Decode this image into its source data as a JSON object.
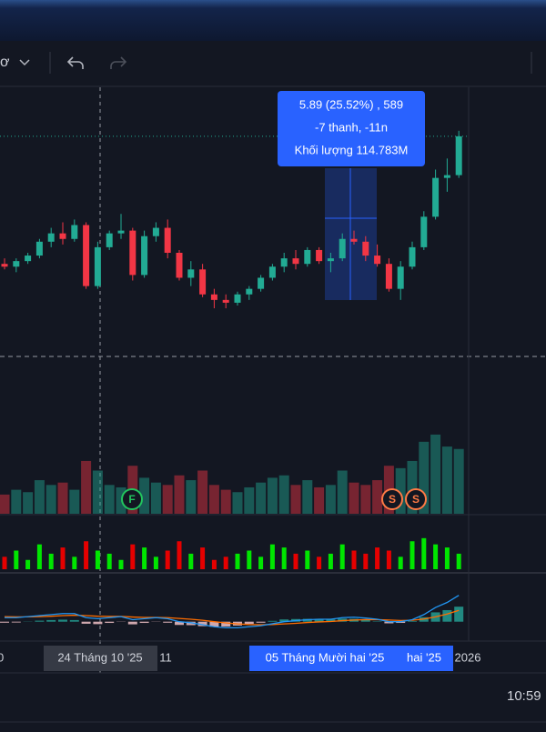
{
  "toolbar": {
    "menu_fragment": "ơ"
  },
  "chart_data": {
    "type": "candlestick",
    "open": [
      24.4,
      24.3,
      24.5,
      24.7,
      25.2,
      25.5,
      25.3,
      25.8,
      23.6,
      25.0,
      25.5,
      25.6,
      24.0,
      25.4,
      25.7,
      24.8,
      23.9,
      24.2,
      23.3,
      23.1,
      23.0,
      23.3,
      23.5,
      23.9,
      24.3,
      24.6,
      24.4,
      24.9,
      24.5,
      24.6,
      25.3,
      25.2,
      24.7,
      24.4,
      23.5,
      24.3,
      25.0,
      26.1,
      27.5,
      27.6
    ],
    "high": [
      24.6,
      24.6,
      24.8,
      25.3,
      25.7,
      25.9,
      26.0,
      25.9,
      25.2,
      25.6,
      26.2,
      25.7,
      25.6,
      25.9,
      26.0,
      24.9,
      24.5,
      24.4,
      23.5,
      23.3,
      23.4,
      23.6,
      24.0,
      24.4,
      24.8,
      24.9,
      25.0,
      25.0,
      24.8,
      25.5,
      25.6,
      25.4,
      25.1,
      24.6,
      24.5,
      25.2,
      26.3,
      27.8,
      28.2,
      29.2
    ],
    "low": [
      24.2,
      24.1,
      24.4,
      24.6,
      25.0,
      25.1,
      25.2,
      23.5,
      23.5,
      24.9,
      25.3,
      23.8,
      23.9,
      25.2,
      24.6,
      23.8,
      23.6,
      23.2,
      22.8,
      22.8,
      22.9,
      23.1,
      23.4,
      23.8,
      24.1,
      24.2,
      24.3,
      24.4,
      24.1,
      24.5,
      25.1,
      24.5,
      24.3,
      23.4,
      23.1,
      24.2,
      24.9,
      26.0,
      27.0,
      27.5
    ],
    "close": [
      24.3,
      24.5,
      24.7,
      25.2,
      25.5,
      25.3,
      25.8,
      23.6,
      25.0,
      25.5,
      25.6,
      24.0,
      25.4,
      25.7,
      24.8,
      23.9,
      24.2,
      23.3,
      23.1,
      23.0,
      23.3,
      23.5,
      23.9,
      24.3,
      24.6,
      24.4,
      24.9,
      24.5,
      24.6,
      25.3,
      25.2,
      24.7,
      24.4,
      23.5,
      24.3,
      25.0,
      26.1,
      27.5,
      27.6,
      29.0
    ],
    "ylim": [
      20.8,
      30.8
    ],
    "volume": [
      8,
      10,
      9,
      14,
      12,
      13,
      10,
      22,
      18,
      12,
      11,
      20,
      15,
      13,
      12,
      16,
      14,
      18,
      12,
      10,
      9,
      11,
      13,
      15,
      16,
      12,
      14,
      11,
      12,
      18,
      13,
      12,
      14,
      20,
      19,
      22,
      30,
      33,
      28,
      27
    ],
    "volume_ylim": [
      0,
      36
    ],
    "activity": [
      4,
      6,
      3,
      8,
      5,
      7,
      4,
      9,
      6,
      5,
      3,
      8,
      7,
      4,
      6,
      9,
      5,
      7,
      3,
      4,
      5,
      6,
      4,
      8,
      7,
      5,
      6,
      4,
      5,
      8,
      6,
      5,
      7,
      6,
      4,
      9,
      10,
      8,
      7,
      5
    ],
    "activity_ylim": [
      0,
      12
    ],
    "macd": [
      0.2,
      0.2,
      0.25,
      0.3,
      0.35,
      0.4,
      0.4,
      0.2,
      0.15,
      0.2,
      0.25,
      0.1,
      0.15,
      0.2,
      0.15,
      0.0,
      -0.05,
      -0.15,
      -0.25,
      -0.3,
      -0.3,
      -0.25,
      -0.2,
      -0.1,
      0.0,
      0.05,
      0.1,
      0.12,
      0.12,
      0.2,
      0.22,
      0.18,
      0.12,
      0.0,
      0.0,
      0.1,
      0.35,
      0.7,
      0.95,
      1.3
    ],
    "signal": [
      0.25,
      0.24,
      0.24,
      0.25,
      0.27,
      0.3,
      0.32,
      0.3,
      0.27,
      0.26,
      0.26,
      0.23,
      0.21,
      0.21,
      0.2,
      0.16,
      0.12,
      0.07,
      0.0,
      -0.06,
      -0.11,
      -0.14,
      -0.15,
      -0.14,
      -0.11,
      -0.08,
      -0.04,
      -0.01,
      0.01,
      0.05,
      0.08,
      0.1,
      0.1,
      0.08,
      0.06,
      0.07,
      0.13,
      0.24,
      0.38,
      0.56
    ],
    "histogram": [
      -0.05,
      -0.04,
      0.01,
      0.05,
      0.08,
      0.1,
      0.08,
      -0.1,
      -0.12,
      -0.06,
      -0.01,
      -0.13,
      -0.06,
      -0.01,
      -0.05,
      -0.16,
      -0.17,
      -0.22,
      -0.25,
      -0.24,
      -0.19,
      -0.11,
      -0.05,
      0.04,
      0.11,
      0.13,
      0.14,
      0.13,
      0.11,
      0.15,
      0.14,
      0.08,
      0.02,
      -0.08,
      -0.06,
      0.03,
      0.22,
      0.46,
      0.57,
      0.74
    ],
    "macd_ylim": [
      -1,
      1.6
    ],
    "up_color": "#22ab94",
    "down_color": "#f23645",
    "macd_color": "#2196f3",
    "signal_color": "#ff6d00",
    "tooltip": [
      "5.89 (25.52%) , 589",
      "-7 thanh, -11n",
      "Khối lượng 114.783M"
    ],
    "events": [
      "F",
      "S",
      "S"
    ],
    "time_labels": [
      "0",
      "24 Tháng 10 '25",
      "11",
      "05 Tháng Mười hai '25",
      "hai '25",
      "2026"
    ]
  },
  "status": {
    "clock": "10:59"
  }
}
